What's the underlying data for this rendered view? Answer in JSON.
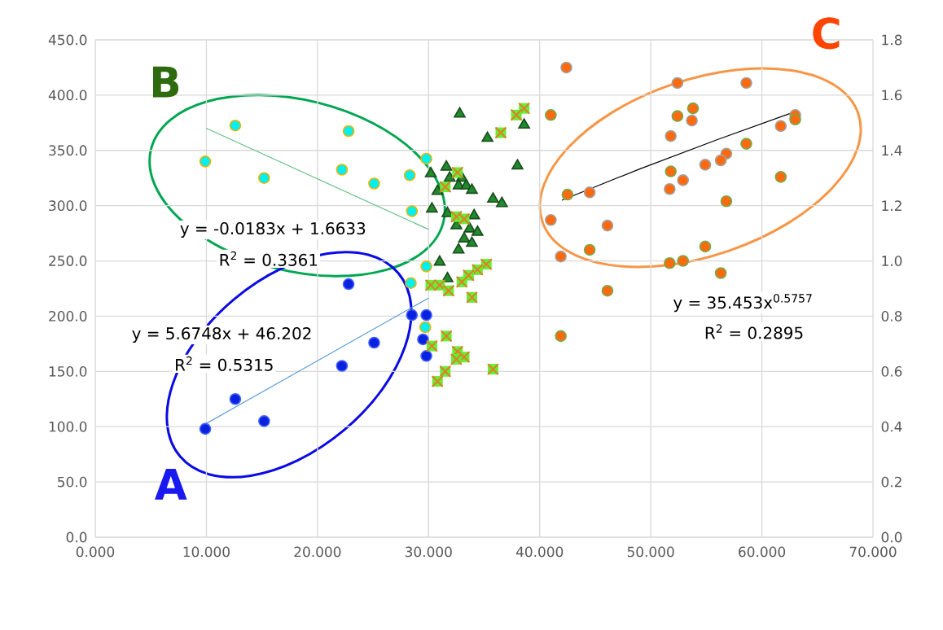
{
  "chart_data": {
    "type": "scatter",
    "xlim": [
      0,
      70
    ],
    "ylim": [
      0,
      450
    ],
    "y2lim": [
      0,
      1.8
    ],
    "xticks": [
      {
        "value": 0,
        "label": "0.000"
      },
      {
        "value": 10,
        "label": "10.000"
      },
      {
        "value": 20,
        "label": "20.000"
      },
      {
        "value": 30,
        "label": "30.000"
      },
      {
        "value": 40,
        "label": "40.000"
      },
      {
        "value": 50,
        "label": "50.000"
      },
      {
        "value": 60,
        "label": "60.000"
      },
      {
        "value": 70,
        "label": "70.000"
      }
    ],
    "yticks": [
      {
        "value": 0,
        "label": "0.0"
      },
      {
        "value": 50,
        "label": "50.0"
      },
      {
        "value": 100,
        "label": "100.0"
      },
      {
        "value": 150,
        "label": "150.0"
      },
      {
        "value": 200,
        "label": "200.0"
      },
      {
        "value": 250,
        "label": "250.0"
      },
      {
        "value": 300,
        "label": "300.0"
      },
      {
        "value": 350,
        "label": "350.0"
      },
      {
        "value": 400,
        "label": "400.0"
      },
      {
        "value": 450,
        "label": "450.0"
      }
    ],
    "y2ticks": [
      {
        "value": 0,
        "label": "0.0"
      },
      {
        "value": 0.2,
        "label": "0.2"
      },
      {
        "value": 0.4,
        "label": "0.4"
      },
      {
        "value": 0.6,
        "label": "0.6"
      },
      {
        "value": 0.8,
        "label": "0.8"
      },
      {
        "value": 1.0,
        "label": "1.0"
      },
      {
        "value": 1.2,
        "label": "1.2"
      },
      {
        "value": 1.4,
        "label": "1.4"
      },
      {
        "value": 1.6,
        "label": "1.6"
      },
      {
        "value": 1.8,
        "label": "1.8"
      }
    ],
    "grid": true,
    "series": [
      {
        "marker": "circle",
        "color": "#0a22e0",
        "x": [
          9.9,
          12.6,
          15.2,
          22.2,
          22.8,
          25.1,
          28.5,
          29.8,
          29.5,
          29.8
        ],
        "values": [
          98,
          125,
          105,
          155,
          229,
          176,
          201,
          201,
          179,
          164
        ]
      },
      {
        "marker": "circle",
        "color": "#00f0f0",
        "axis": "y2",
        "x": [
          9.9,
          12.6,
          15.2,
          22.2,
          22.8,
          25.1,
          28.3,
          29.8,
          28.5,
          29.8,
          28.4,
          29.7
        ],
        "values": [
          1.36,
          1.49,
          1.3,
          1.33,
          1.47,
          1.28,
          1.31,
          1.37,
          1.18,
          0.98,
          0.92,
          0.76
        ]
      },
      {
        "marker": "triangle",
        "color": "#1f8a2e",
        "x": [
          32.8,
          35.3,
          38.6,
          38.0,
          30.2,
          31.6,
          31.9,
          33.0,
          32.7,
          33.4,
          33.9,
          30.8,
          35.8,
          36.6,
          30.3,
          31.7,
          34.1,
          32.5,
          33.7,
          34.4,
          33.2,
          33.9,
          32.7,
          31.0,
          31.7
        ],
        "values": [
          383,
          361,
          373,
          336,
          329,
          335,
          325,
          325,
          318,
          318,
          314,
          313,
          306,
          302,
          297,
          293,
          291,
          282,
          279,
          276,
          270,
          266,
          260,
          249,
          234
        ]
      },
      {
        "marker": "cross",
        "color": "#e8782a",
        "x": [
          38.6,
          37.9,
          36.5,
          32.6,
          31.5,
          32.5,
          33.2,
          35.2,
          34.4,
          33.6,
          33.0,
          30.2,
          31.0,
          31.8,
          33.9,
          31.6,
          30.3,
          32.6,
          33.2,
          32.5,
          35.8,
          31.5,
          30.8
        ],
        "values": [
          388,
          382,
          366,
          330,
          317,
          290,
          288,
          247,
          242,
          237,
          231,
          228,
          228,
          223,
          217,
          182,
          173,
          168,
          163,
          161,
          152,
          150,
          141
        ]
      },
      {
        "marker": "circle",
        "color": "#ff6a10",
        "x": [
          42.4,
          52.4,
          58.6,
          53.7,
          51.8,
          61.7,
          63.0,
          56.8,
          56.3,
          54.9,
          52.9,
          51.7,
          44.5,
          41.0,
          46.1,
          41.9
        ],
        "values": [
          425,
          411,
          411,
          377,
          363,
          372,
          382,
          347,
          341,
          337,
          323,
          315,
          312,
          287,
          282,
          254
        ]
      },
      {
        "marker": "circle",
        "color": "#ff6a10",
        "x": [
          41.0,
          52.4,
          53.8,
          58.6,
          63.0,
          51.8,
          42.5,
          61.7,
          56.8,
          44.5,
          54.9,
          51.7,
          52.9,
          56.3,
          46.1,
          41.9
        ],
        "values": [
          382,
          381,
          388,
          356,
          378,
          331,
          310,
          326,
          304,
          260,
          263,
          248,
          250,
          239,
          223,
          182
        ]
      },
      {
        "type": "line",
        "color": "#5b9bd5",
        "x": [
          10,
          30
        ],
        "values": [
          102.9,
          216.4
        ]
      },
      {
        "type": "line",
        "color": "#66c28a",
        "axis": "y2",
        "x": [
          10,
          30
        ],
        "values": [
          1.48,
          1.114
        ]
      },
      {
        "type": "line",
        "color": "#000000",
        "x": [
          42,
          49,
          56,
          63
        ],
        "values": [
          304.9,
          333.2,
          359.8,
          385.1
        ]
      }
    ],
    "annotations": [
      "A",
      "B",
      "C",
      "y = 5.6748x + 46.202",
      "R$^{2}$ = 0.5315",
      "y = -0.0183x + 1.6633",
      "R$^{2}$ = 0.3361",
      "y = 35.453x$^{0.5757}$",
      "R$^{2}$ = 0.2895"
    ]
  }
}
